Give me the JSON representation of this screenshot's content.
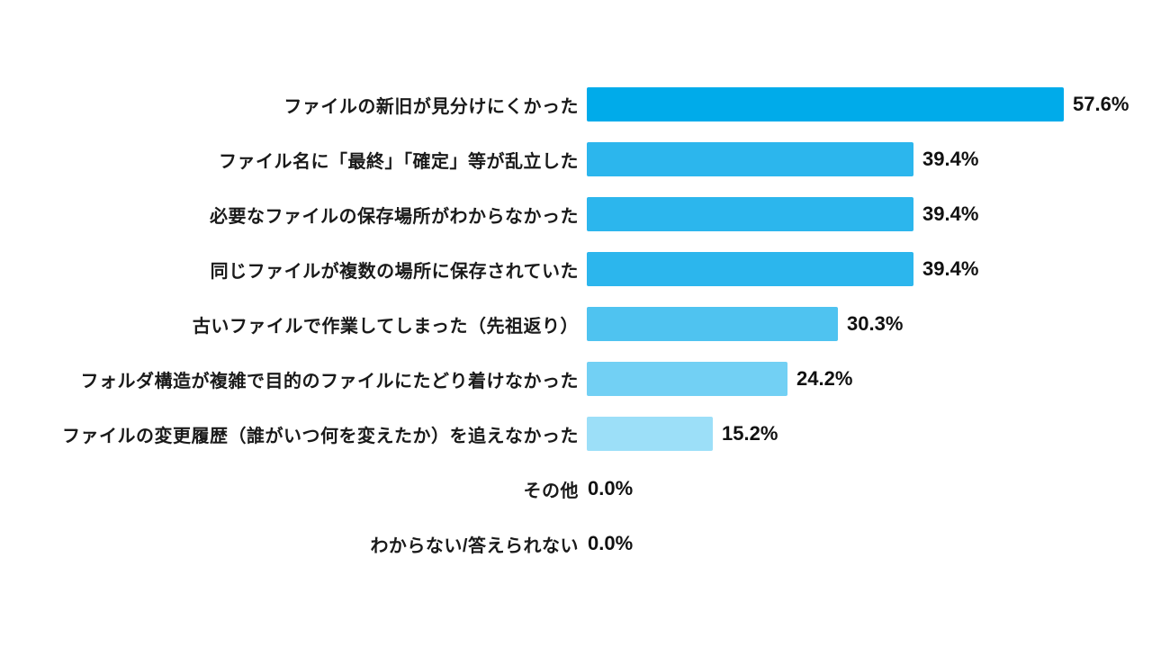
{
  "chart_data": {
    "type": "bar",
    "orientation": "horizontal",
    "title": "",
    "xlabel": "",
    "ylabel": "",
    "xlim": [
      0,
      62
    ],
    "grid": false,
    "legend": false,
    "background_color": "#FFFFFF",
    "text_color": "#1A1A1A",
    "categories": [
      "ファイルの新旧が見分けにくかった",
      "ファイル名に「最終」「確定」等が乱立した",
      "必要なファイルの保存場所がわからなかった",
      "同じファイルが複数の場所に保存されていた",
      "古いファイルで作業してしまった（先祖返り）",
      "フォルダ構造が複雑で目的のファイルにたどり着けなかった",
      "ファイルの変更履歴（誰がいつ何を変えたか）を追えなかった",
      "その他",
      "わからない/答えられない"
    ],
    "values": [
      57.6,
      39.4,
      39.4,
      39.4,
      30.3,
      24.2,
      15.2,
      0.0,
      0.0
    ],
    "value_labels": [
      "57.6%",
      "39.4%",
      "39.4%",
      "39.4%",
      "30.3%",
      "24.2%",
      "15.2%",
      "0.0%",
      "0.0%"
    ],
    "bar_colors": [
      "#00ABEA",
      "#2CB6ED",
      "#2CB6ED",
      "#2CB6ED",
      "#4FC3F0",
      "#72D0F4",
      "#9CDFF8",
      "#FFFFFF",
      "#FFFFFF"
    ]
  }
}
